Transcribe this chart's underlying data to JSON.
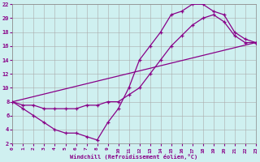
{
  "xlabel": "Windchill (Refroidissement éolien,°C)",
  "background_color": "#cff0f0",
  "grid_color": "#aaaaaa",
  "line_color": "#880088",
  "xlim": [
    0,
    23
  ],
  "ylim": [
    2,
    22
  ],
  "yticks": [
    2,
    4,
    6,
    8,
    10,
    12,
    14,
    16,
    18,
    20,
    22
  ],
  "xticks": [
    0,
    1,
    2,
    3,
    4,
    5,
    6,
    7,
    8,
    9,
    10,
    11,
    12,
    13,
    14,
    15,
    16,
    17,
    18,
    19,
    20,
    21,
    22,
    23
  ],
  "line1_x": [
    0,
    1,
    2,
    3,
    4,
    5,
    6,
    7,
    8,
    9,
    10,
    11,
    12,
    13,
    14,
    15,
    16,
    17,
    18,
    19,
    20,
    21,
    22,
    23
  ],
  "line1_y": [
    8,
    7,
    6,
    5,
    4,
    3.5,
    3.5,
    3,
    2.5,
    5,
    7,
    10,
    14,
    16,
    18,
    20.5,
    21,
    22,
    22,
    21,
    20.5,
    18,
    17,
    16.5
  ],
  "line2_x": [
    0,
    1,
    2,
    3,
    4,
    5,
    6,
    7,
    8,
    9,
    10,
    11,
    12,
    13,
    14,
    15,
    16,
    17,
    18,
    19,
    20,
    21,
    22,
    23
  ],
  "line2_y": [
    8,
    7.5,
    7.5,
    7,
    7,
    7,
    7,
    7.5,
    7.5,
    8,
    8,
    9,
    10,
    12,
    14,
    16,
    17.5,
    19,
    20,
    20.5,
    19.5,
    17.5,
    16.5,
    16.5
  ],
  "line3_x": [
    0,
    23
  ],
  "line3_y": [
    8,
    16.5
  ],
  "figsize": [
    3.2,
    2.0
  ],
  "dpi": 100
}
